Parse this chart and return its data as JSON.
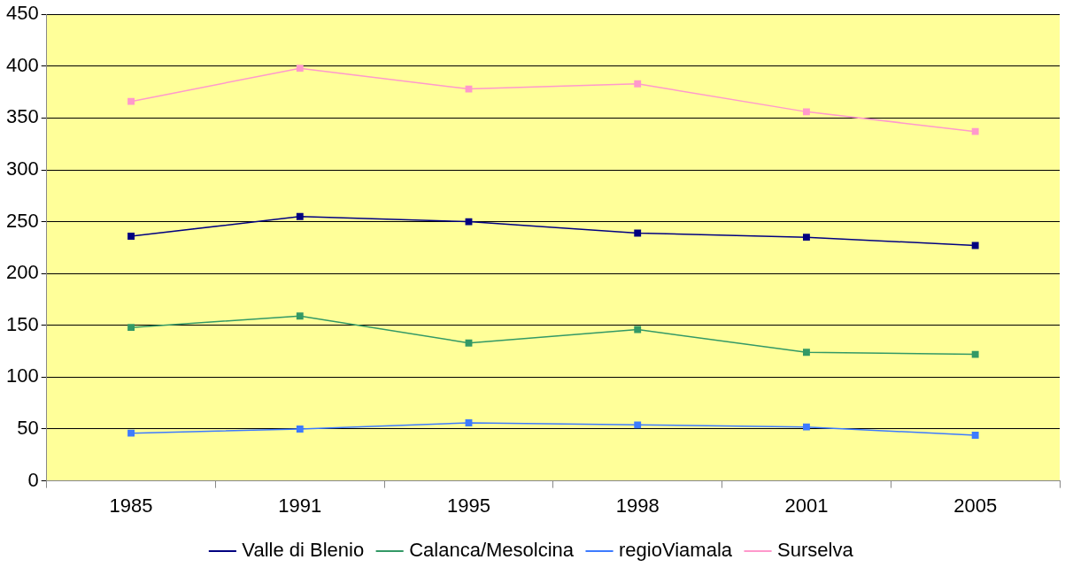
{
  "chart_data": {
    "type": "line",
    "categories": [
      "1985",
      "1991",
      "1995",
      "1998",
      "2001",
      "2005"
    ],
    "series": [
      {
        "name": "Valle di Blenio",
        "color": "#000080",
        "values": [
          236,
          255,
          250,
          239,
          235,
          227
        ]
      },
      {
        "name": "Calanca/Mesolcina",
        "color": "#339966",
        "values": [
          148,
          159,
          133,
          146,
          124,
          122
        ]
      },
      {
        "name": "regioViamala",
        "color": "#3d7bff",
        "values": [
          46,
          50,
          56,
          54,
          52,
          44
        ]
      },
      {
        "name": "Surselva",
        "color": "#ff99cc",
        "values": [
          366,
          398,
          378,
          383,
          356,
          337
        ]
      }
    ],
    "ylim": [
      0,
      450
    ],
    "yticks": [
      0,
      50,
      100,
      150,
      200,
      250,
      300,
      350,
      400,
      450
    ],
    "grid": "y",
    "legend": "bottom",
    "marker": "square",
    "line_style": "solid"
  }
}
